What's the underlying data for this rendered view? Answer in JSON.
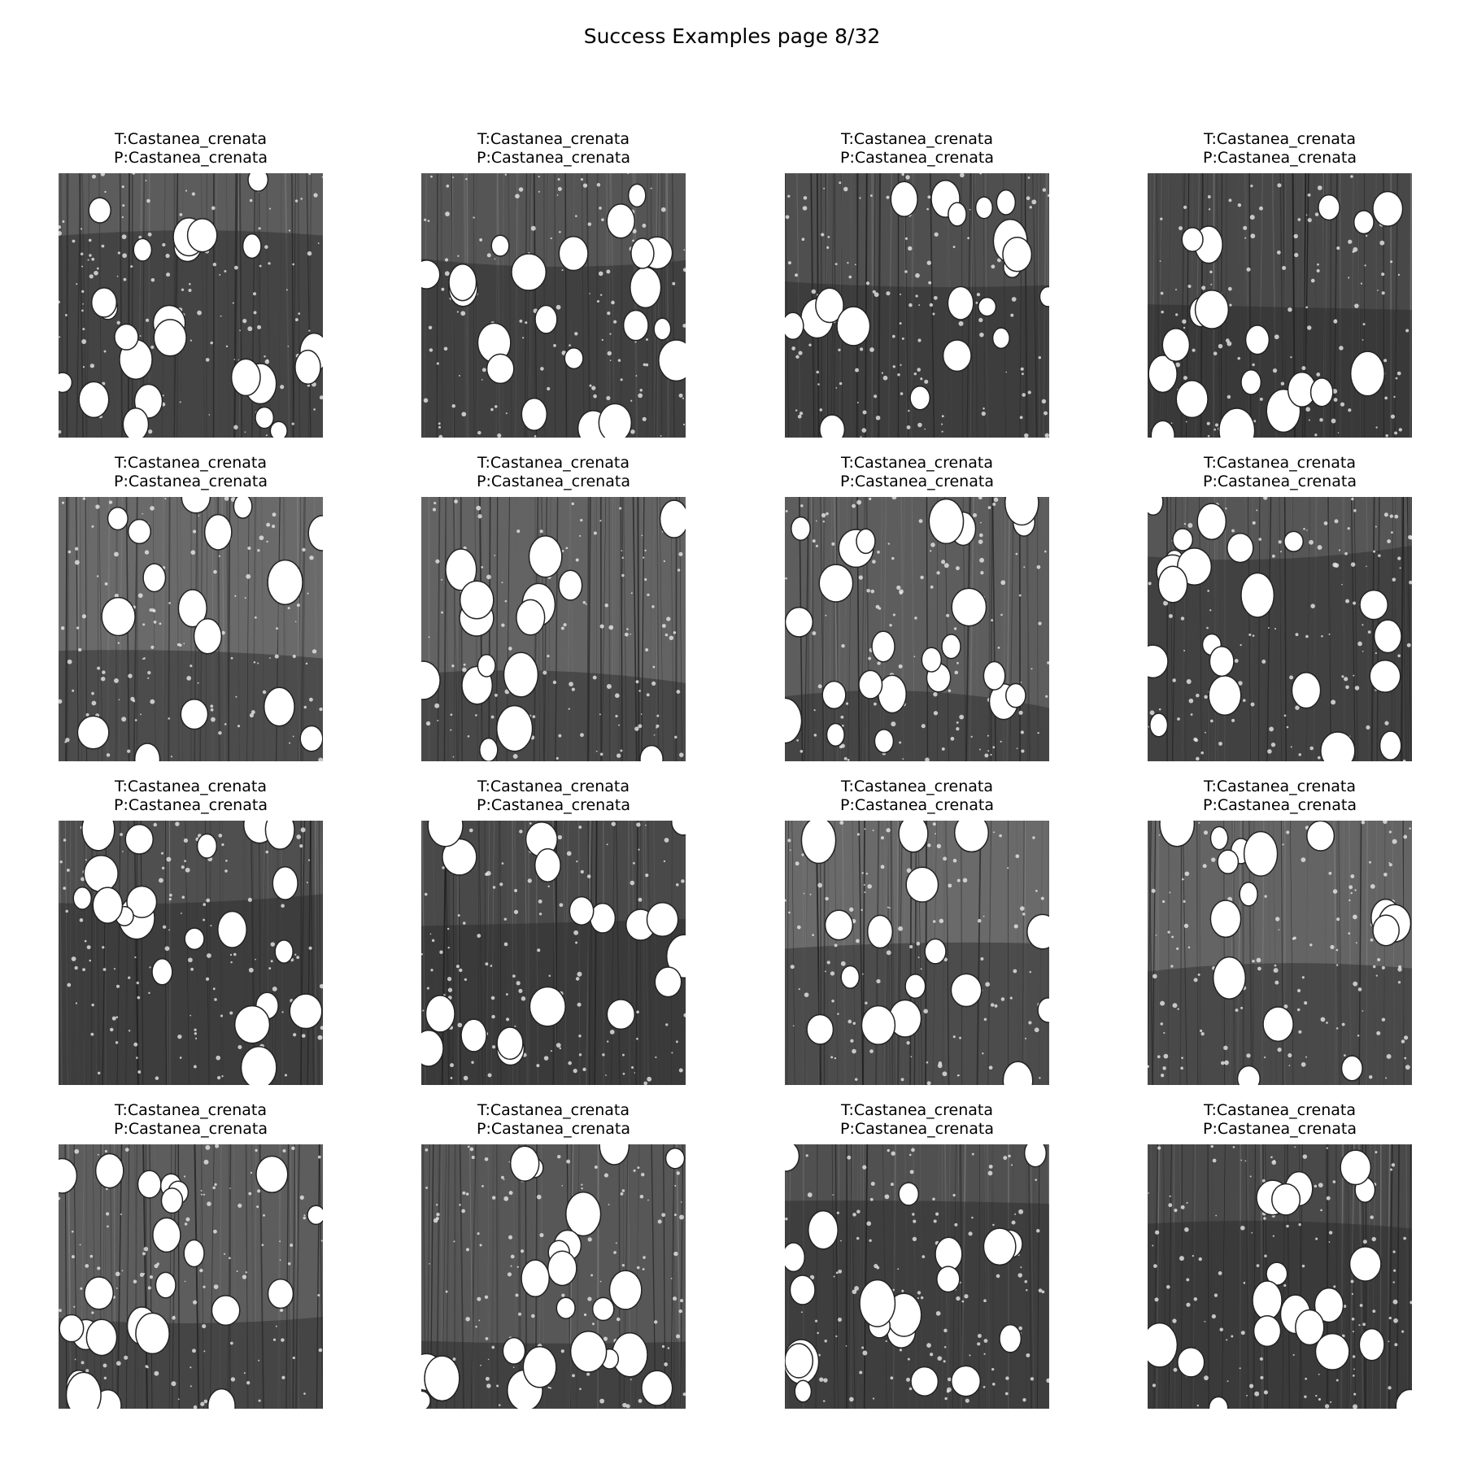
{
  "figure": {
    "title": "Success Examples page 8/32"
  },
  "examples": [
    {
      "true_label": "T:Castanea_crenata",
      "pred_label": "P:Castanea_crenata"
    },
    {
      "true_label": "T:Castanea_crenata",
      "pred_label": "P:Castanea_crenata"
    },
    {
      "true_label": "T:Castanea_crenata",
      "pred_label": "P:Castanea_crenata"
    },
    {
      "true_label": "T:Castanea_crenata",
      "pred_label": "P:Castanea_crenata"
    },
    {
      "true_label": "T:Castanea_crenata",
      "pred_label": "P:Castanea_crenata"
    },
    {
      "true_label": "T:Castanea_crenata",
      "pred_label": "P:Castanea_crenata"
    },
    {
      "true_label": "T:Castanea_crenata",
      "pred_label": "P:Castanea_crenata"
    },
    {
      "true_label": "T:Castanea_crenata",
      "pred_label": "P:Castanea_crenata"
    },
    {
      "true_label": "T:Castanea_crenata",
      "pred_label": "P:Castanea_crenata"
    },
    {
      "true_label": "T:Castanea_crenata",
      "pred_label": "P:Castanea_crenata"
    },
    {
      "true_label": "T:Castanea_crenata",
      "pred_label": "P:Castanea_crenata"
    },
    {
      "true_label": "T:Castanea_crenata",
      "pred_label": "P:Castanea_crenata"
    },
    {
      "true_label": "T:Castanea_crenata",
      "pred_label": "P:Castanea_crenata"
    },
    {
      "true_label": "T:Castanea_crenata",
      "pred_label": "P:Castanea_crenata"
    },
    {
      "true_label": "T:Castanea_crenata",
      "pred_label": "P:Castanea_crenata"
    },
    {
      "true_label": "T:Castanea_crenata",
      "pred_label": "P:Castanea_crenata"
    }
  ]
}
